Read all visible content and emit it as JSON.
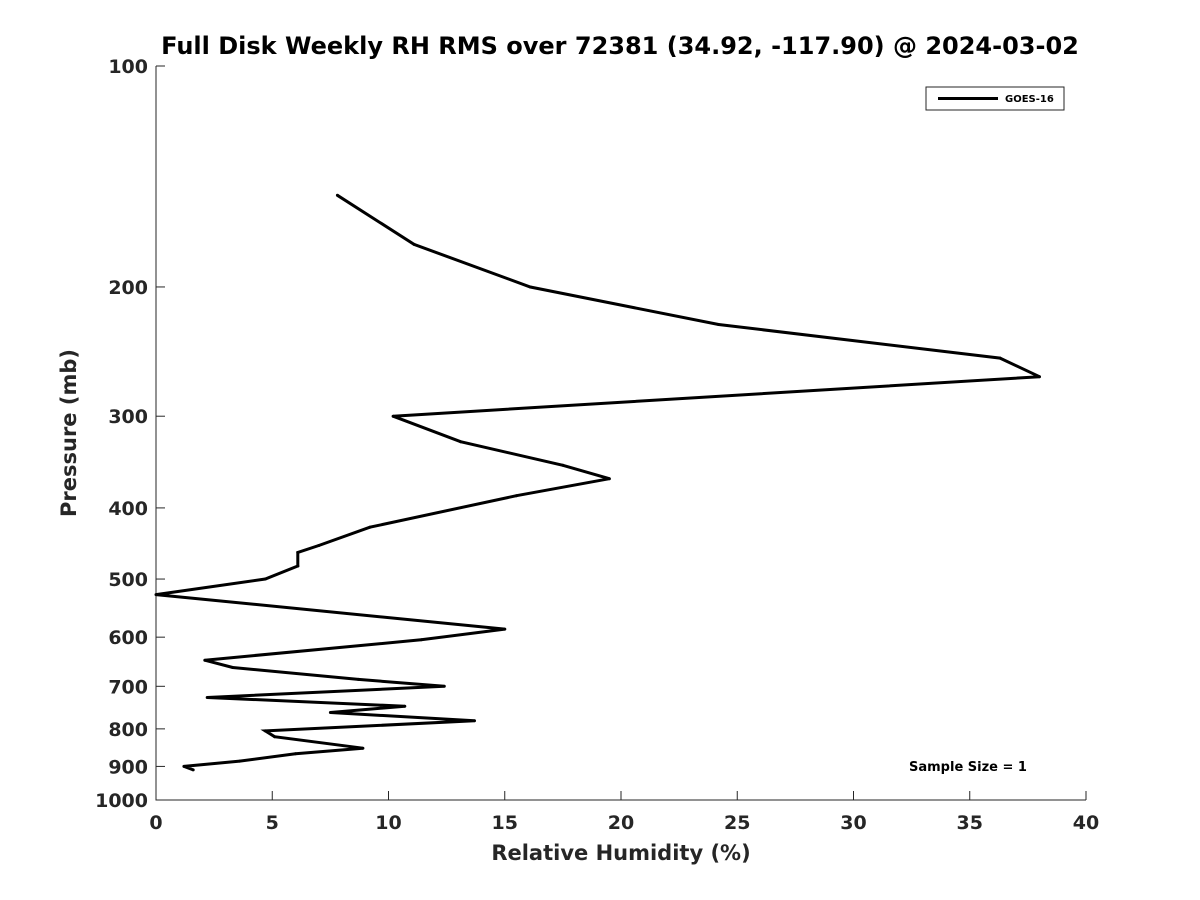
{
  "chart_data": {
    "type": "line",
    "title": "Full Disk Weekly RH RMS over 72381 (34.92, -117.90) @ 2024-03-02",
    "xlabel": "Relative Humidity (%)",
    "ylabel": "Pressure (mb)",
    "xlim": [
      0,
      40
    ],
    "ylim": [
      100,
      1000
    ],
    "yscale": "log",
    "yreversed": true,
    "x_ticks": [
      0,
      5,
      10,
      15,
      20,
      25,
      30,
      35,
      40
    ],
    "y_ticks": [
      100,
      200,
      300,
      400,
      500,
      600,
      700,
      800,
      900,
      1000
    ],
    "grid": false,
    "legend_position": "top-right",
    "annotation": "Sample Size = 1",
    "series": [
      {
        "name": "GOES-16",
        "color": "#000000",
        "points": [
          {
            "rh": 7.8,
            "p": 150
          },
          {
            "rh": 11.1,
            "p": 175
          },
          {
            "rh": 16.1,
            "p": 200
          },
          {
            "rh": 24.2,
            "p": 225
          },
          {
            "rh": 36.3,
            "p": 250
          },
          {
            "rh": 38.0,
            "p": 265
          },
          {
            "rh": 10.2,
            "p": 300
          },
          {
            "rh": 13.1,
            "p": 325
          },
          {
            "rh": 17.5,
            "p": 350
          },
          {
            "rh": 19.5,
            "p": 365
          },
          {
            "rh": 15.5,
            "p": 385
          },
          {
            "rh": 9.2,
            "p": 425
          },
          {
            "rh": 7.0,
            "p": 450
          },
          {
            "rh": 6.1,
            "p": 460
          },
          {
            "rh": 6.1,
            "p": 480
          },
          {
            "rh": 4.7,
            "p": 500
          },
          {
            "rh": 0.0,
            "p": 525
          },
          {
            "rh": 15.0,
            "p": 585
          },
          {
            "rh": 11.4,
            "p": 605
          },
          {
            "rh": 2.1,
            "p": 645
          },
          {
            "rh": 3.3,
            "p": 660
          },
          {
            "rh": 8.7,
            "p": 685
          },
          {
            "rh": 12.4,
            "p": 700
          },
          {
            "rh": 2.2,
            "p": 725
          },
          {
            "rh": 10.7,
            "p": 745
          },
          {
            "rh": 7.5,
            "p": 760
          },
          {
            "rh": 13.7,
            "p": 780
          },
          {
            "rh": 4.7,
            "p": 805
          },
          {
            "rh": 5.1,
            "p": 820
          },
          {
            "rh": 8.9,
            "p": 850
          },
          {
            "rh": 6.0,
            "p": 865
          },
          {
            "rh": 3.6,
            "p": 885
          },
          {
            "rh": 1.2,
            "p": 900
          },
          {
            "rh": 1.6,
            "p": 910
          }
        ]
      }
    ]
  }
}
